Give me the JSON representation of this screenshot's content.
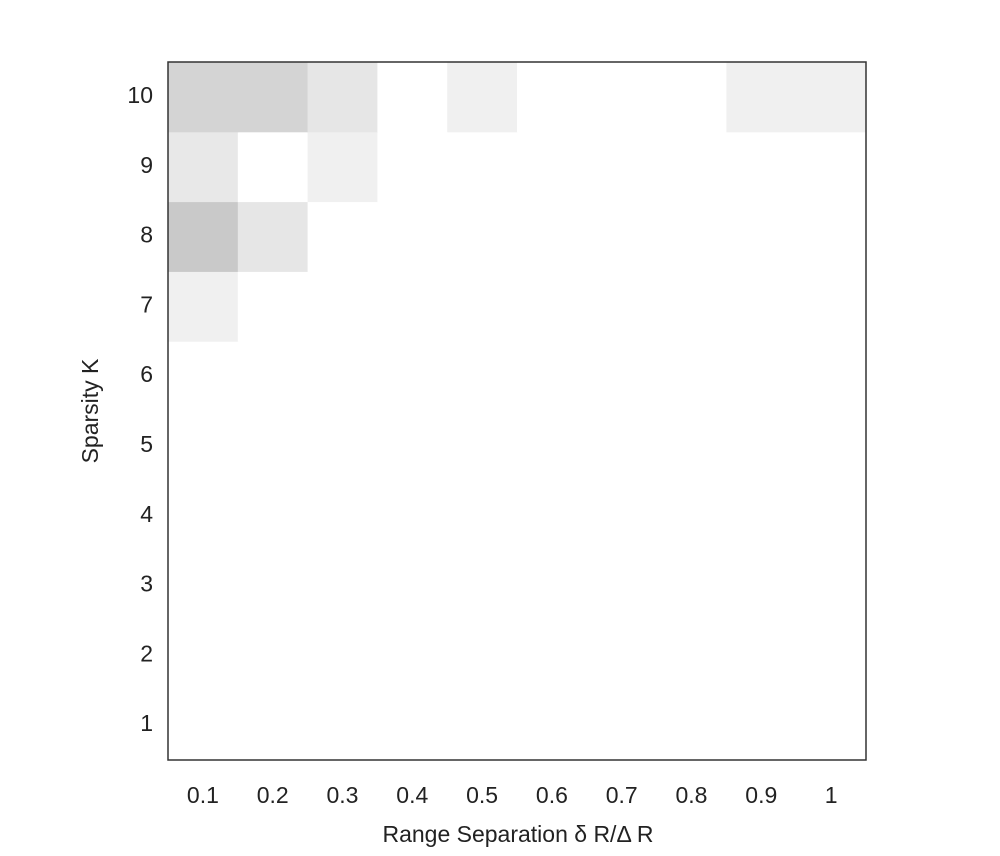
{
  "chart_data": {
    "type": "heatmap",
    "x_label": "Range Separation  δ R/Δ R",
    "y_label": "Sparsity  K",
    "x": [
      0.1,
      0.2,
      0.3,
      0.4,
      0.5,
      0.6,
      0.7,
      0.8,
      0.9,
      1
    ],
    "y": [
      1,
      2,
      3,
      4,
      5,
      6,
      7,
      8,
      9,
      10
    ],
    "z": [
      [
        0,
        0,
        0,
        0,
        0,
        0,
        0,
        0,
        0,
        0
      ],
      [
        0,
        0,
        0,
        0,
        0,
        0,
        0,
        0,
        0,
        0
      ],
      [
        0,
        0,
        0,
        0,
        0,
        0,
        0,
        0,
        0,
        0
      ],
      [
        0,
        0,
        0,
        0,
        0,
        0,
        0,
        0,
        0,
        0
      ],
      [
        0,
        0,
        0,
        0,
        0,
        0,
        0,
        0,
        0,
        0
      ],
      [
        0,
        0,
        0,
        0,
        0,
        0,
        0,
        0,
        0,
        0
      ],
      [
        0.06,
        0,
        0,
        0,
        0,
        0,
        0,
        0,
        0,
        0
      ],
      [
        0.21,
        0.1,
        0,
        0,
        0,
        0,
        0,
        0,
        0,
        0
      ],
      [
        0.09,
        0,
        0.06,
        0,
        0,
        0,
        0,
        0,
        0,
        0
      ],
      [
        0.17,
        0.17,
        0.1,
        0,
        0.06,
        0,
        0,
        0,
        0.06,
        0.06
      ]
    ],
    "zlim": [
      0,
      1
    ],
    "colormap": [
      "#ffffff",
      "#000000"
    ],
    "xlim": [
      0.05,
      1.05
    ],
    "ylim": [
      0.5,
      10.5
    ],
    "xticks": [
      0.1,
      0.2,
      0.3,
      0.4,
      0.5,
      0.6,
      0.7,
      0.8,
      0.9,
      1
    ],
    "yticks": [
      1,
      2,
      3,
      4,
      5,
      6,
      7,
      8,
      9,
      10
    ]
  }
}
